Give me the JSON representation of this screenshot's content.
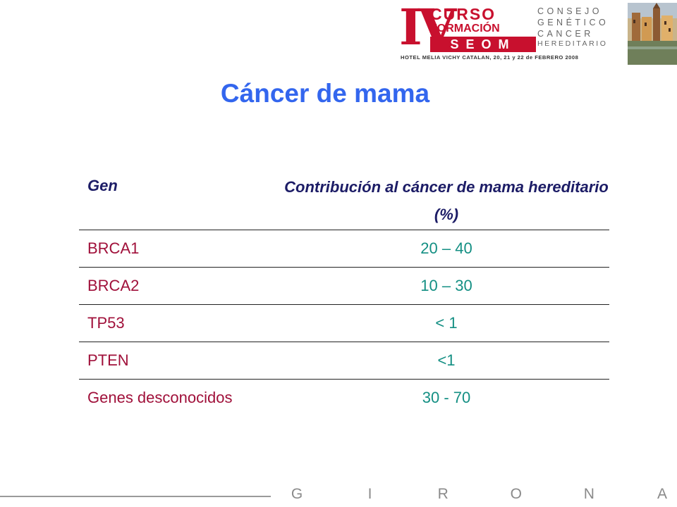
{
  "logo": {
    "roman": "IV",
    "curso": "CURSO",
    "formacion": "FORMACIÓN",
    "seom": "SEOM",
    "consejo_lines": [
      "CONSEJO",
      "GENÉTICO"
    ],
    "cancer": "CANCER",
    "hereditario": "HEREDITARIO",
    "hotel": "HOTEL MELIA VICHY CATALAN, 20, 21 y 22 de FEBRERO 2008"
  },
  "title": "Cáncer de mama",
  "table": {
    "header_gen": "Gen",
    "header_contrib": "Contribución al cáncer de mama hereditario (%)",
    "rows": [
      {
        "gen": "BRCA1",
        "value": "20 – 40"
      },
      {
        "gen": "BRCA2",
        "value": "10 – 30"
      },
      {
        "gen": "TP53",
        "value": "< 1"
      },
      {
        "gen": "PTEN",
        "value": "<1"
      },
      {
        "gen": "Genes desconocidos",
        "value": "30 - 70"
      }
    ]
  },
  "footer": {
    "letters": [
      "G",
      "I",
      "R",
      "O",
      "N",
      "A"
    ]
  },
  "colors": {
    "title": "#3366ee",
    "header": "#1c1c66",
    "gene": "#a0103a",
    "value": "#138f83",
    "brand_red": "#c8102e"
  }
}
